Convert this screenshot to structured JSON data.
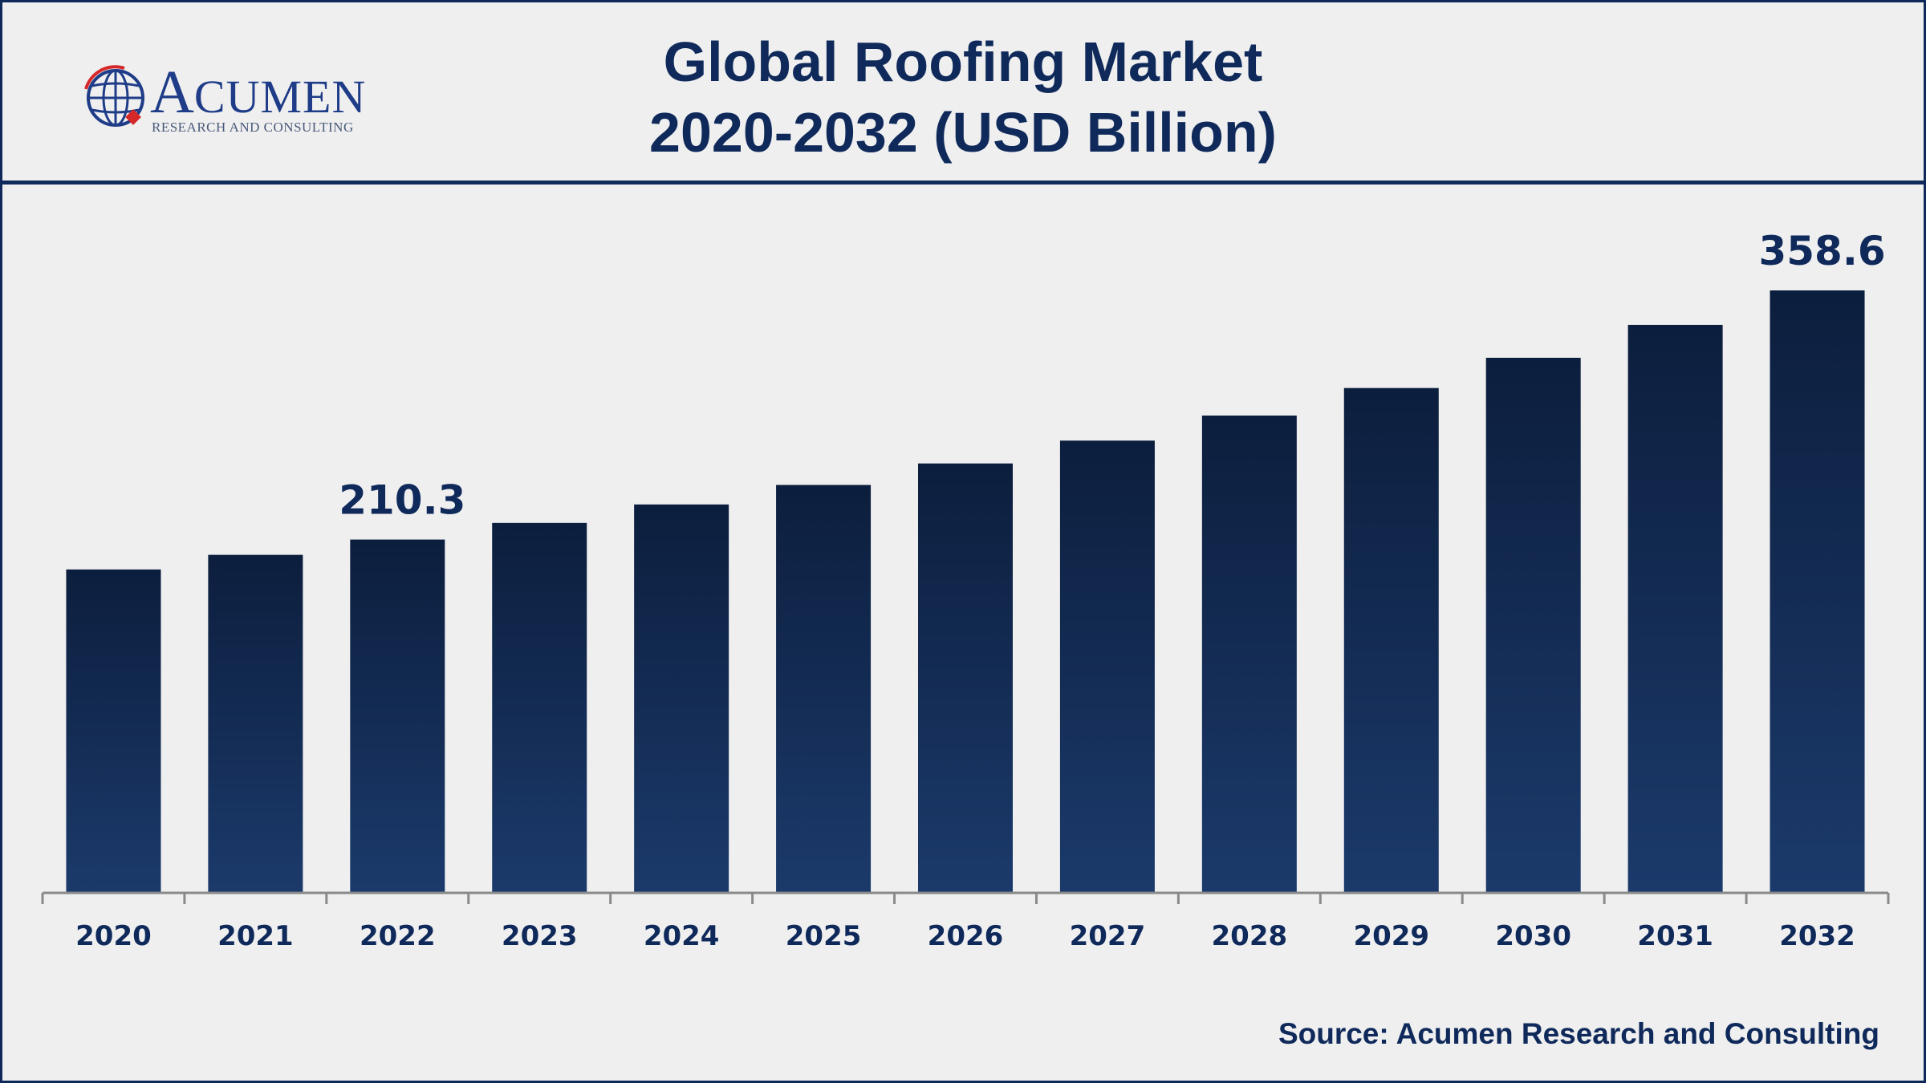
{
  "header": {
    "title_line1": "Global Roofing Market",
    "title_line2": "2020-2032 (USD Billion)"
  },
  "logo": {
    "name_initial": "A",
    "name_rest": "CUMEN",
    "tagline": "RESEARCH AND CONSULTING"
  },
  "source": "Source: Acumen Research and Consulting",
  "colors": {
    "primary": "#0f2a5a",
    "bar_top": "#0c1e3d",
    "bar_bottom": "#1b3a6b",
    "background": "#efeff0",
    "axis": "#8a8a8a",
    "logo_red": "#d62828",
    "logo_blue": "#1f3c88"
  },
  "chart_data": {
    "type": "bar",
    "categories": [
      "2020",
      "2021",
      "2022",
      "2023",
      "2024",
      "2025",
      "2026",
      "2027",
      "2028",
      "2029",
      "2030",
      "2031",
      "2032"
    ],
    "values": [
      192.5,
      201.2,
      210.3,
      220.2,
      231.2,
      242.8,
      255.6,
      269.2,
      284.1,
      300.5,
      318.5,
      338.1,
      358.6
    ],
    "data_labels": [
      {
        "category": "2022",
        "text": "210.3"
      },
      {
        "category": "2032",
        "text": "358.6"
      }
    ],
    "title": "Global Roofing Market 2020-2032 (USD Billion)",
    "xlabel": "",
    "ylabel": "",
    "ylim": [
      0,
      400
    ],
    "grid": false,
    "legend": "none"
  }
}
